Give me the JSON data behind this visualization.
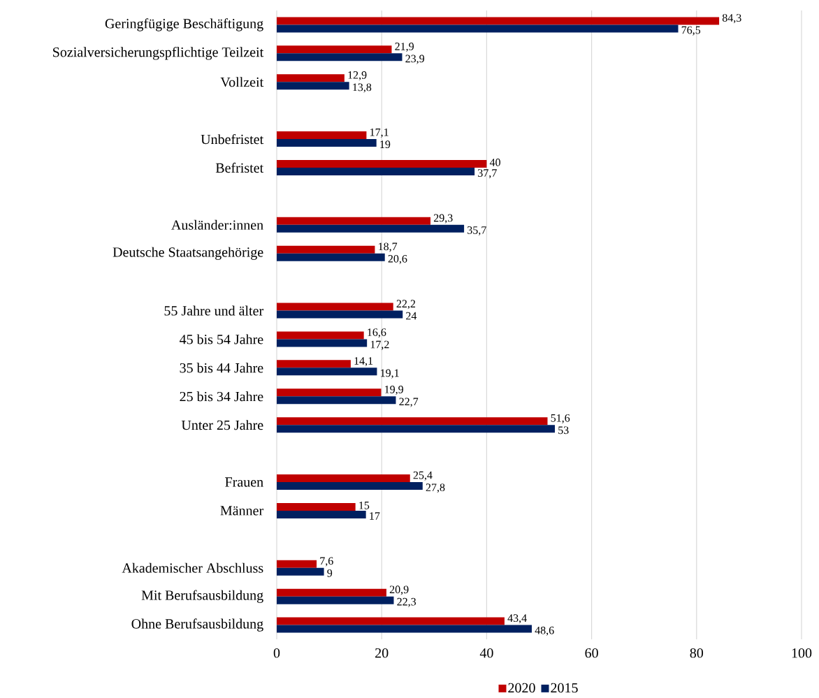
{
  "chart_data": {
    "type": "bar",
    "orientation": "horizontal",
    "categories": [
      "Geringfügige Beschäftigung",
      "Sozialversicherungspflichtige Teilzeit",
      "Vollzeit",
      null,
      "Unbefristet",
      "Befristet",
      null,
      "Ausländer:innen",
      "Deutsche Staatsangehörige",
      null,
      "55 Jahre und älter",
      "45 bis 54 Jahre",
      "35 bis 44 Jahre",
      "25 bis 34 Jahre",
      "Unter 25 Jahre",
      null,
      "Frauen",
      "Männer",
      null,
      "Akademischer Abschluss",
      "Mit Berufsausbildung",
      "Ohne Berufsausbildung"
    ],
    "series": [
      {
        "name": "2020",
        "color": "#c00000",
        "values": [
          84.3,
          21.9,
          12.9,
          null,
          17.1,
          40,
          null,
          29.3,
          18.7,
          null,
          22.2,
          16.6,
          14.1,
          19.9,
          51.6,
          null,
          25.4,
          15,
          null,
          7.6,
          20.9,
          43.4
        ],
        "value_labels": [
          "84,3",
          "21,9",
          "12,9",
          null,
          "17,1",
          "40",
          null,
          "29,3",
          "18,7",
          null,
          "22,2",
          "16,6",
          "14,1",
          "19,9",
          "51,6",
          null,
          "25,4",
          "15",
          null,
          "7,6",
          "20,9",
          "43,4"
        ]
      },
      {
        "name": "2015",
        "color": "#002060",
        "values": [
          76.5,
          23.9,
          13.8,
          null,
          19,
          37.7,
          null,
          35.7,
          20.6,
          null,
          24,
          17.2,
          19.1,
          22.7,
          53,
          null,
          27.8,
          17,
          null,
          9,
          22.3,
          48.6
        ],
        "value_labels": [
          "76,5",
          "23,9",
          "13,8",
          null,
          "19",
          "37,7",
          null,
          "35,7",
          "20,6",
          null,
          "24",
          "17,2",
          "19,1",
          "22,7",
          "53",
          null,
          "27,8",
          "17",
          null,
          "9",
          "22,3",
          "48,6"
        ]
      }
    ],
    "xlim": [
      0,
      100
    ],
    "xticks": [
      0,
      20,
      40,
      60,
      80,
      100
    ],
    "grid": "x",
    "legend": "bottom"
  }
}
